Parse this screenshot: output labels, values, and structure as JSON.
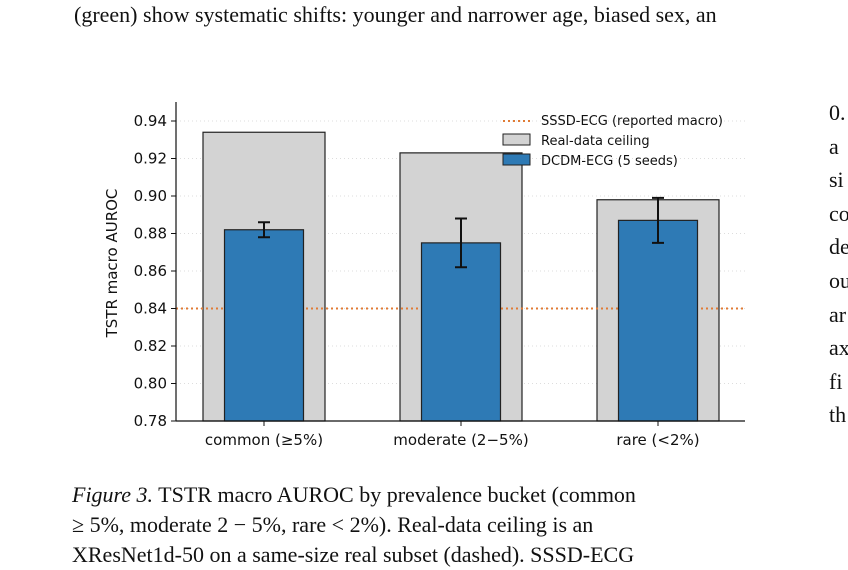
{
  "top_line": "(green) show systematic shifts: younger and narrower age, biased sex, an",
  "right_column": [
    "0.",
    "a",
    "si",
    "co",
    "de",
    "ou",
    "ar",
    "ax",
    "fi",
    "th"
  ],
  "caption": {
    "label": "Figure 3.",
    "line1": " TSTR macro AUROC by prevalence bucket (common",
    "line2": "≥ 5%, moderate 2 − 5%, rare < 2%).  Real-data ceiling is an",
    "line3": "XResNet1d-50 on a same-size real subset (dashed). SSSD-ECG"
  },
  "chart_data": {
    "type": "bar",
    "ylabel": "TSTR macro AUROC",
    "ylim": [
      0.78,
      0.95
    ],
    "yticks": [
      0.78,
      0.8,
      0.82,
      0.84,
      0.86,
      0.88,
      0.9,
      0.92,
      0.94
    ],
    "ytick_labels": [
      "0.78",
      "0.80",
      "0.82",
      "0.84",
      "0.86",
      "0.88",
      "0.90",
      "0.92",
      "0.94"
    ],
    "categories": [
      "common (≥5%)",
      "moderate (2−5%)",
      "rare (<2%)"
    ],
    "series": [
      {
        "name": "Real-data ceiling",
        "values": [
          0.934,
          0.923,
          0.898
        ],
        "color": "#d3d3d3"
      },
      {
        "name": "DCDM-ECG (5 seeds)",
        "values": [
          0.882,
          0.875,
          0.887
        ],
        "errors": [
          0.004,
          0.013,
          0.012
        ],
        "color": "#2e7ab5"
      }
    ],
    "reference_line": {
      "name": "SSSD-ECG (reported macro)",
      "value": 0.84,
      "color": "#e07b35",
      "style": "dotted"
    },
    "grid": "horizontal dotted",
    "legend_position": "top-right"
  }
}
